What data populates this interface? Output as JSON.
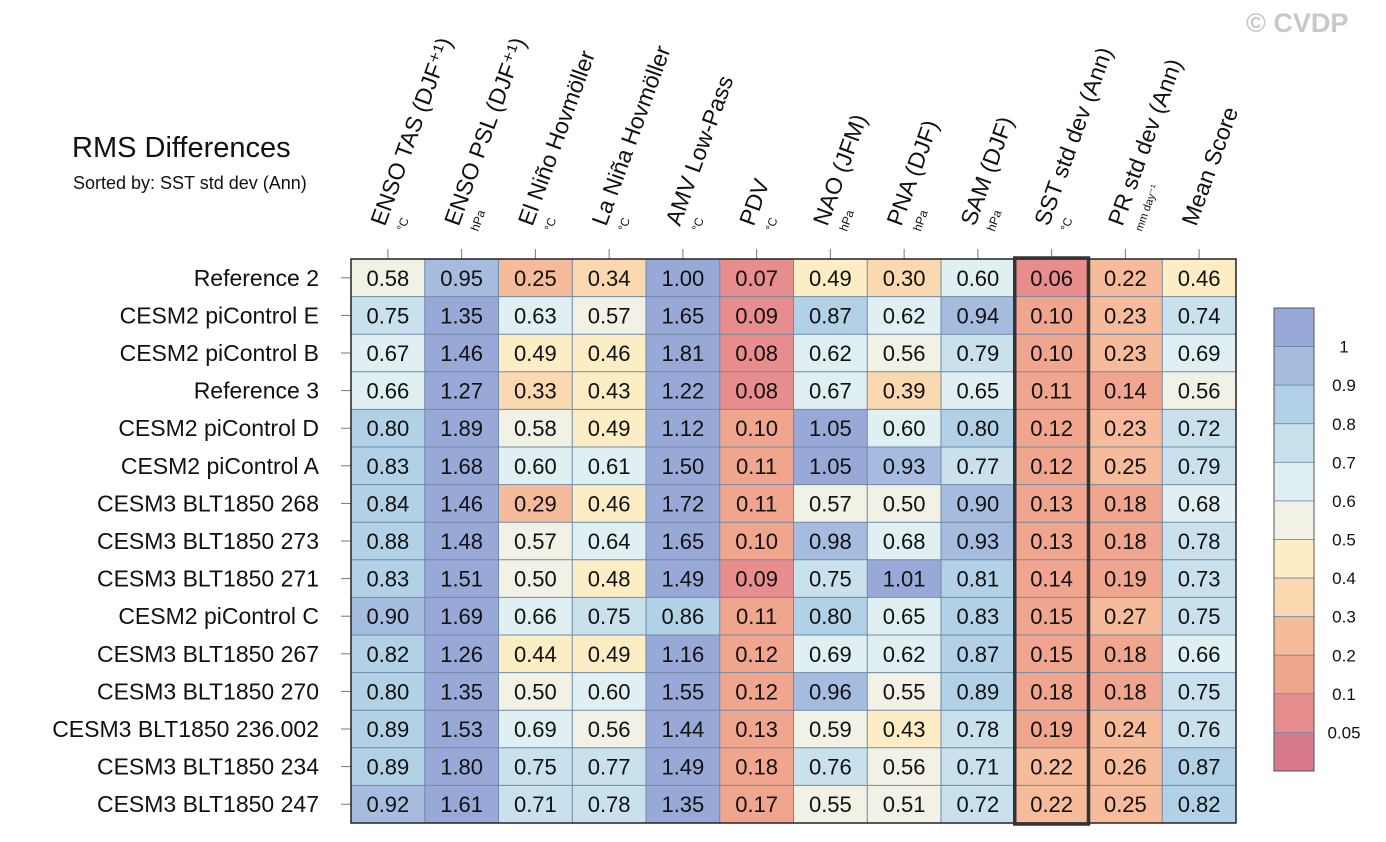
{
  "watermark": "© CVDP",
  "chart_data": {
    "type": "heatmap",
    "title": "RMS Differences",
    "subtitle": "Sorted by: SST std dev (Ann)",
    "columns": [
      {
        "name": "ENSO TAS (DJF⁺¹)",
        "unit": "°C"
      },
      {
        "name": "ENSO PSL (DJF⁺¹)",
        "unit": "hPa"
      },
      {
        "name": "El Niño Hovmöller",
        "unit": "°C"
      },
      {
        "name": "La Niña Hovmöller",
        "unit": "°C"
      },
      {
        "name": "AMV Low-Pass",
        "unit": "°C"
      },
      {
        "name": "PDV",
        "unit": "°C"
      },
      {
        "name": "NAO (JFM)",
        "unit": "hPa"
      },
      {
        "name": "PNA (DJF)",
        "unit": "hPa"
      },
      {
        "name": "SAM (DJF)",
        "unit": "hPa"
      },
      {
        "name": "SST std dev (Ann)",
        "unit": "°C"
      },
      {
        "name": "PR std dev (Ann)",
        "unit": "mm day⁻¹"
      },
      {
        "name": "Mean Score",
        "unit": ""
      }
    ],
    "rows": [
      "Reference 2",
      "CESM2 piControl E",
      "CESM2 piControl B",
      "Reference 3",
      "CESM2 piControl D",
      "CESM2 piControl A",
      "CESM3 BLT1850 268",
      "CESM3 BLT1850 273",
      "CESM3 BLT1850 271",
      "CESM2 piControl C",
      "CESM3 BLT1850 267",
      "CESM3 BLT1850 270",
      "CESM3 BLT1850 236.002",
      "CESM3 BLT1850 234",
      "CESM3 BLT1850 247"
    ],
    "values": [
      [
        0.58,
        0.95,
        0.25,
        0.34,
        1.0,
        0.07,
        0.49,
        0.3,
        0.6,
        0.06,
        0.22,
        0.46
      ],
      [
        0.75,
        1.35,
        0.63,
        0.57,
        1.65,
        0.09,
        0.87,
        0.62,
        0.94,
        0.1,
        0.23,
        0.74
      ],
      [
        0.67,
        1.46,
        0.49,
        0.46,
        1.81,
        0.08,
        0.62,
        0.56,
        0.79,
        0.1,
        0.23,
        0.69
      ],
      [
        0.66,
        1.27,
        0.33,
        0.43,
        1.22,
        0.08,
        0.67,
        0.39,
        0.65,
        0.11,
        0.14,
        0.56
      ],
      [
        0.8,
        1.89,
        0.58,
        0.49,
        1.12,
        0.1,
        1.05,
        0.6,
        0.8,
        0.12,
        0.23,
        0.72
      ],
      [
        0.83,
        1.68,
        0.6,
        0.61,
        1.5,
        0.11,
        1.05,
        0.93,
        0.77,
        0.12,
        0.25,
        0.79
      ],
      [
        0.84,
        1.46,
        0.29,
        0.46,
        1.72,
        0.11,
        0.57,
        0.5,
        0.9,
        0.13,
        0.18,
        0.68
      ],
      [
        0.88,
        1.48,
        0.57,
        0.64,
        1.65,
        0.1,
        0.98,
        0.68,
        0.93,
        0.13,
        0.18,
        0.78
      ],
      [
        0.83,
        1.51,
        0.5,
        0.48,
        1.49,
        0.09,
        0.75,
        1.01,
        0.81,
        0.14,
        0.19,
        0.73
      ],
      [
        0.9,
        1.69,
        0.66,
        0.75,
        0.86,
        0.11,
        0.8,
        0.65,
        0.83,
        0.15,
        0.27,
        0.75
      ],
      [
        0.82,
        1.26,
        0.44,
        0.49,
        1.16,
        0.12,
        0.69,
        0.62,
        0.87,
        0.15,
        0.18,
        0.66
      ],
      [
        0.8,
        1.35,
        0.5,
        0.6,
        1.55,
        0.12,
        0.96,
        0.55,
        0.89,
        0.18,
        0.18,
        0.75
      ],
      [
        0.89,
        1.53,
        0.69,
        0.56,
        1.44,
        0.13,
        0.59,
        0.43,
        0.78,
        0.19,
        0.24,
        0.76
      ],
      [
        0.89,
        1.8,
        0.75,
        0.77,
        1.49,
        0.18,
        0.76,
        0.56,
        0.71,
        0.22,
        0.26,
        0.87
      ],
      [
        0.92,
        1.61,
        0.71,
        0.78,
        1.35,
        0.17,
        0.55,
        0.51,
        0.72,
        0.22,
        0.25,
        0.82
      ]
    ],
    "highlighted_column": "SST std dev (Ann)",
    "colorbar": {
      "levels": [
        "1",
        "0.9",
        "0.8",
        "0.7",
        "0.6",
        "0.5",
        "0.4",
        "0.3",
        "0.2",
        "0.1",
        "0.05"
      ],
      "thresholds": [
        0.05,
        0.1,
        0.2,
        0.3,
        0.4,
        0.5,
        0.6,
        0.7,
        0.8,
        0.9,
        1.0
      ],
      "colors": [
        "#d97a8c",
        "#e88d8d",
        "#f0a58f",
        "#f6bb9a",
        "#fad8b0",
        "#fdedc4",
        "#f2f1e6",
        "#dfeff2",
        "#c8e1ed",
        "#b2d0e6",
        "#a5bcdf",
        "#98a9d7"
      ]
    }
  }
}
